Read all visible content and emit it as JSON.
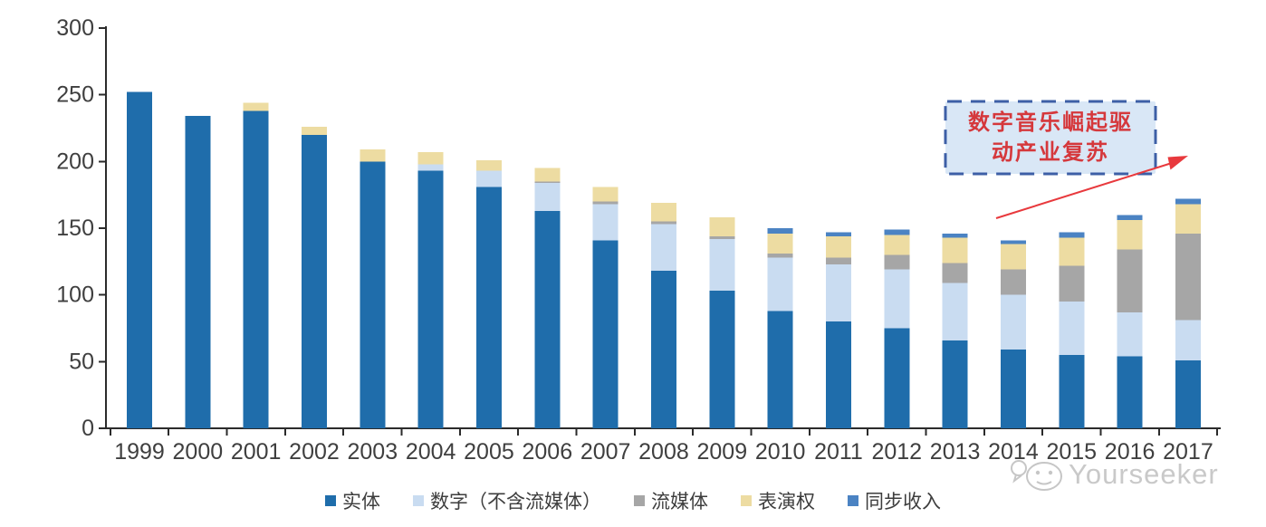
{
  "chart_data": {
    "type": "bar",
    "stacked": true,
    "title": "",
    "xlabel": "",
    "ylabel": "",
    "categories": [
      "1999",
      "2000",
      "2001",
      "2002",
      "2003",
      "2004",
      "2005",
      "2006",
      "2007",
      "2008",
      "2009",
      "2010",
      "2011",
      "2012",
      "2013",
      "2014",
      "2015",
      "2016",
      "2017"
    ],
    "series": [
      {
        "name": "实体",
        "color": "#1F6DAB",
        "values": [
          252,
          234,
          238,
          220,
          200,
          193,
          181,
          163,
          141,
          118,
          103,
          88,
          80,
          75,
          66,
          59,
          55,
          54,
          51
        ]
      },
      {
        "name": "数字（不含流媒体）",
        "color": "#C9DCF1",
        "values": [
          0,
          0,
          0,
          0,
          0,
          5,
          12,
          21,
          27,
          35,
          39,
          40,
          43,
          44,
          43,
          41,
          40,
          33,
          30
        ]
      },
      {
        "name": "流媒体",
        "color": "#A6A6A6",
        "values": [
          0,
          0,
          0,
          0,
          0,
          0,
          0,
          1,
          2,
          2,
          2,
          3,
          5,
          11,
          15,
          19,
          27,
          47,
          65
        ]
      },
      {
        "name": "表演权",
        "color": "#EDDCA2",
        "values": [
          0,
          0,
          6,
          6,
          9,
          9,
          8,
          10,
          11,
          14,
          14,
          15,
          16,
          15,
          19,
          19,
          21,
          22,
          22
        ]
      },
      {
        "name": "同步收入",
        "color": "#4B83C3",
        "values": [
          0,
          0,
          0,
          0,
          0,
          0,
          0,
          0,
          0,
          0,
          0,
          4,
          3,
          4,
          3,
          3,
          4,
          4,
          4
        ]
      }
    ],
    "ylim": [
      0,
      300
    ],
    "yticks": [
      0,
      50,
      100,
      150,
      200,
      250,
      300
    ],
    "grid": false,
    "legend_position": "bottom",
    "axis_color": "#2b2b2b",
    "tick_label_color": "#3f3f3f"
  },
  "annotation": {
    "line1": "数字音乐崛起驱",
    "line2": "动产业复苏",
    "text_color": "#d5383c",
    "box_fill": "#d9e7f6",
    "box_border": "#3d5fa6",
    "arrow_color": "#e8393d"
  },
  "watermark": {
    "text": "Yourseeker",
    "color": "#c9c9c9"
  }
}
